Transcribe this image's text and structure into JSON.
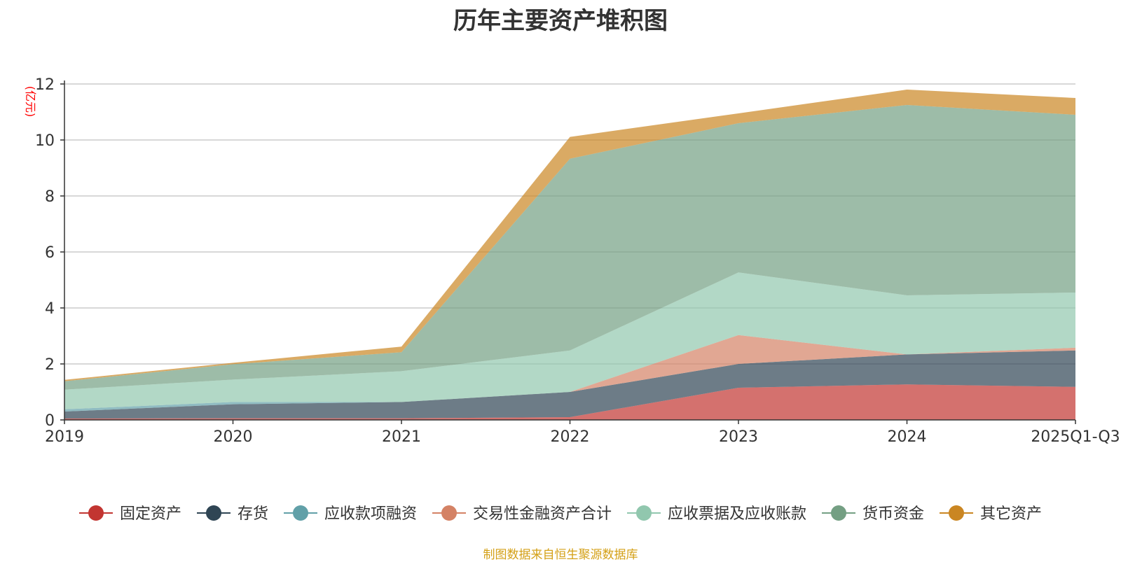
{
  "chart_data": {
    "type": "area",
    "stacked": true,
    "title": "历年主要资产堆积图",
    "unit_label": "(亿元)",
    "categories": [
      "2019",
      "2020",
      "2021",
      "2022",
      "2023",
      "2024",
      "2025Q1-Q3"
    ],
    "ylim": [
      0,
      12
    ],
    "yticks": [
      0,
      2,
      4,
      6,
      8,
      10,
      12
    ],
    "grid": true,
    "legend_position": "bottom",
    "series": [
      {
        "name": "固定资产",
        "color": "#c23531",
        "values": [
          0.05,
          0.06,
          0.06,
          0.1,
          1.15,
          1.27,
          1.18
        ]
      },
      {
        "name": "存货",
        "color": "#2f4554",
        "values": [
          0.25,
          0.5,
          0.58,
          0.9,
          0.85,
          1.07,
          1.3
        ]
      },
      {
        "name": "应收款项融资",
        "color": "#61a0a8",
        "values": [
          0.08,
          0.08,
          0.0,
          0.0,
          0.0,
          0.0,
          0.0
        ]
      },
      {
        "name": "交易性金融资产合计",
        "color": "#d48265",
        "values": [
          0.0,
          0.0,
          0.0,
          0.0,
          1.03,
          0.0,
          0.1
        ]
      },
      {
        "name": "应收票据及应收账款",
        "color": "#91c7ae",
        "values": [
          0.7,
          0.8,
          1.1,
          1.48,
          2.24,
          2.11,
          1.97
        ]
      },
      {
        "name": "货币资金",
        "color": "#749f83",
        "values": [
          0.3,
          0.55,
          0.68,
          6.85,
          5.33,
          6.8,
          6.35
        ]
      },
      {
        "name": "其它资产",
        "color": "#ca8622",
        "values": [
          0.05,
          0.05,
          0.2,
          0.78,
          0.35,
          0.55,
          0.6
        ]
      }
    ]
  },
  "source_note": "制图数据来自恒生聚源数据库"
}
